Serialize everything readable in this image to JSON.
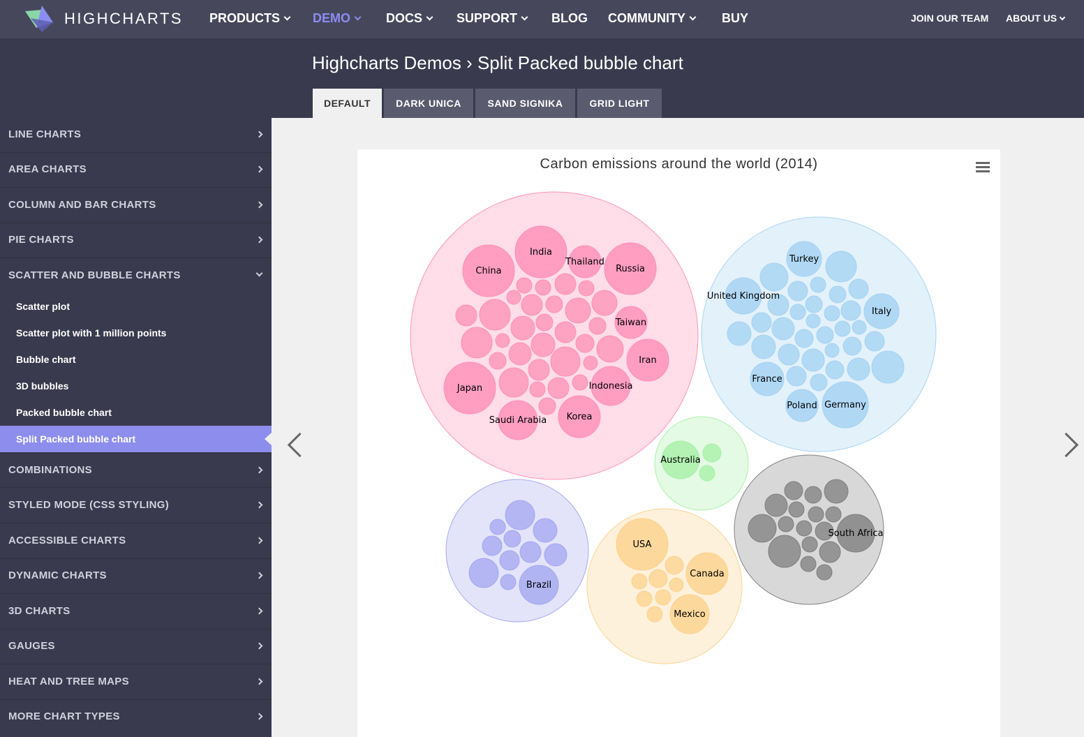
{
  "nav": {
    "brand": "HIGHCHARTS",
    "items": [
      {
        "label": "PRODUCTS",
        "caret": true,
        "active": false
      },
      {
        "label": "DEMO",
        "caret": true,
        "active": true
      },
      {
        "label": "DOCS",
        "caret": true,
        "active": false
      },
      {
        "label": "SUPPORT",
        "caret": true,
        "active": false
      },
      {
        "label": "BLOG",
        "caret": false,
        "active": false
      },
      {
        "label": "COMMUNITY",
        "caret": true,
        "active": false
      },
      {
        "label": "BUY",
        "caret": false,
        "active": false
      }
    ],
    "right": [
      {
        "label": "JOIN OUR TEAM",
        "caret": false
      },
      {
        "label": "ABOUT US",
        "caret": true
      }
    ]
  },
  "header": {
    "title": "Highcharts Demos › Split Packed bubble chart",
    "tabs": [
      "DEFAULT",
      "DARK UNICA",
      "SAND SIGNIKA",
      "GRID LIGHT"
    ],
    "active_tab": 0
  },
  "sidebar": {
    "categories_top": [
      "LINE CHARTS",
      "AREA CHARTS",
      "COLUMN AND BAR CHARTS",
      "PIE CHARTS",
      "SCATTER AND BUBBLE CHARTS"
    ],
    "subitems": [
      "Scatter plot",
      "Scatter plot with 1 million points",
      "Bubble chart",
      "3D bubbles",
      "Packed bubble chart",
      "Split Packed bubble chart"
    ],
    "active_subitem": 5,
    "categories_bottom": [
      "COMBINATIONS",
      "STYLED MODE (CSS STYLING)",
      "ACCESSIBLE CHARTS",
      "DYNAMIC CHARTS",
      "3D CHARTS",
      "GAUGES",
      "HEAT AND TREE MAPS",
      "MORE CHART TYPES"
    ]
  },
  "chart_data": {
    "type": "packedbubble",
    "title": "Carbon emissions around the world (2014)",
    "series": [
      {
        "color": "#ff8fb6",
        "labels": [
          "India",
          "China",
          "Thailand",
          "Russia",
          "Taiwan",
          "Iran",
          "Japan",
          "Indonesia",
          "Saudi Arabia",
          "Korea"
        ]
      },
      {
        "color": "#a3d2f2",
        "labels": [
          "Turkey",
          "United Kingdom",
          "Italy",
          "France",
          "Poland",
          "Germany"
        ]
      },
      {
        "color": "#a6f0a6",
        "labels": [
          "Australia"
        ]
      },
      {
        "color": "#a3a7ef",
        "labels": [
          "Brazil"
        ]
      },
      {
        "color": "#fbd28c",
        "labels": [
          "USA",
          "Canada",
          "Mexico"
        ]
      },
      {
        "color": "#7f7f7f",
        "labels": [
          "South Africa"
        ]
      }
    ]
  }
}
